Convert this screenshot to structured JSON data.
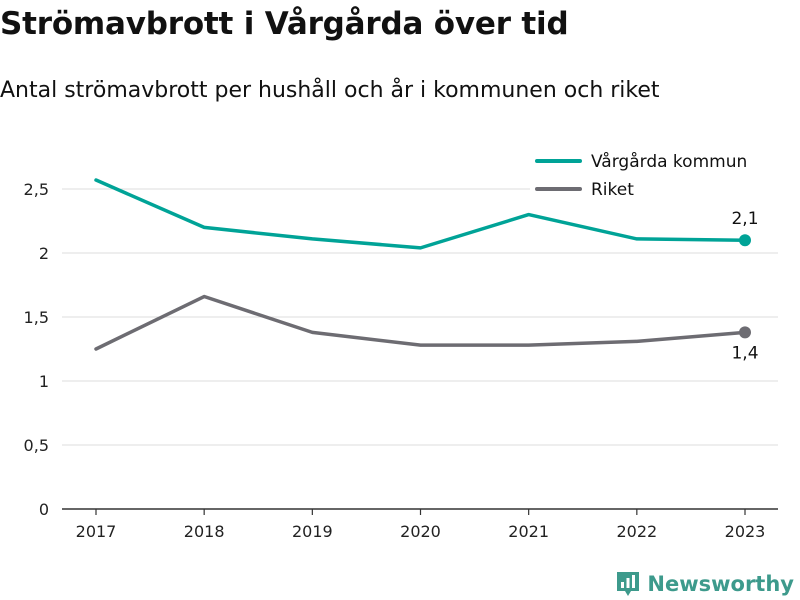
{
  "title": "Strömavbrott i Vårgårda över tid",
  "subtitle": "Antal strömavbrott per hushåll och år i kommunen och riket",
  "brand": "Newsworthy",
  "chart_data": {
    "type": "line",
    "x": [
      "2017",
      "2018",
      "2019",
      "2020",
      "2021",
      "2022",
      "2023"
    ],
    "ylim": [
      0,
      2.5
    ],
    "yticks": [
      0,
      0.5,
      1,
      1.5,
      2,
      2.5
    ],
    "ytick_labels": [
      "0",
      "0,5",
      "1",
      "1,5",
      "2",
      "2,5"
    ],
    "grid": true,
    "legend_position": "top-right",
    "series": [
      {
        "name": "Vårgårda kommun",
        "color": "#00a397",
        "values": [
          2.57,
          2.2,
          2.11,
          2.04,
          2.3,
          2.11,
          2.1
        ],
        "end_label": "2,1"
      },
      {
        "name": "Riket",
        "color": "#6d6c72",
        "values": [
          1.25,
          1.66,
          1.38,
          1.28,
          1.28,
          1.31,
          1.38
        ],
        "end_label": "1,4"
      }
    ]
  }
}
